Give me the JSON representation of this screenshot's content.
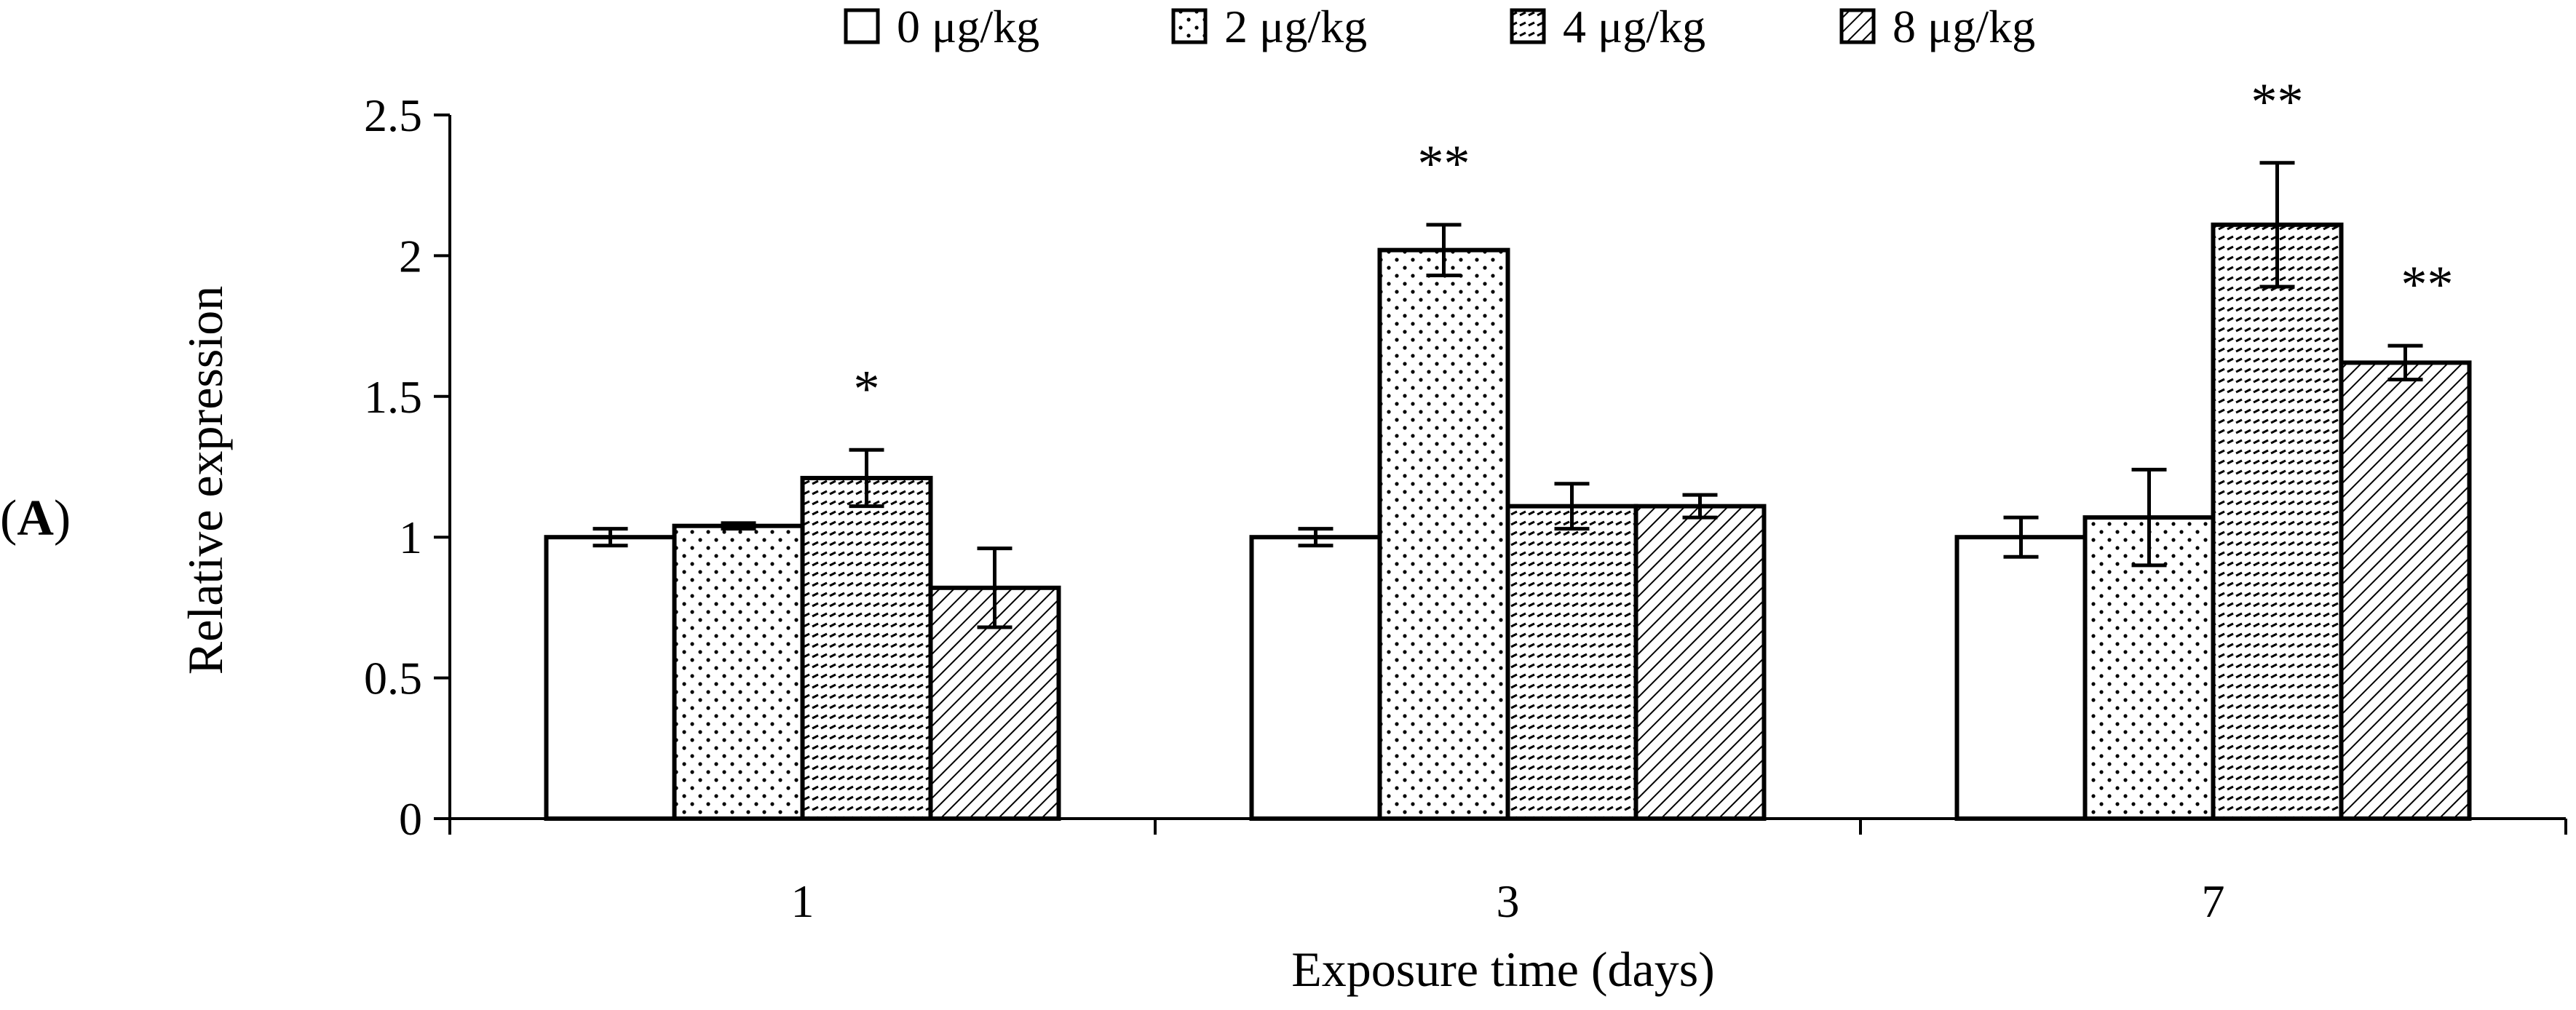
{
  "panel_label": {
    "open": "(",
    "letter": "A",
    "close": ")"
  },
  "chart_data": {
    "type": "bar",
    "title": "",
    "xlabel": "Exposure time (days)",
    "ylabel": "Relative expression",
    "categories": [
      "1",
      "3",
      "7"
    ],
    "ylim": [
      0,
      2.5
    ],
    "yticks": [
      "0",
      "0.5",
      "1",
      "1.5",
      "2",
      "2.5"
    ],
    "grid": false,
    "legend_position": "top",
    "series": [
      {
        "name": "0 μg/kg",
        "pattern": "none",
        "values": [
          1.0,
          1.0,
          1.0
        ],
        "errors": [
          0.03,
          0.03,
          0.07
        ],
        "annotations": [
          "",
          "",
          ""
        ]
      },
      {
        "name": "2 μg/kg",
        "pattern": "dots",
        "values": [
          1.04,
          2.02,
          1.07
        ],
        "errors": [
          0.01,
          0.09,
          0.17
        ],
        "annotations": [
          "",
          "**",
          ""
        ]
      },
      {
        "name": "4 μg/kg",
        "pattern": "horizontal-dashes",
        "values": [
          1.21,
          1.11,
          2.11
        ],
        "errors": [
          0.1,
          0.08,
          0.22
        ],
        "annotations": [
          "*",
          "",
          "**"
        ]
      },
      {
        "name": "8 μg/kg",
        "pattern": "diagonal",
        "values": [
          0.82,
          1.11,
          1.62
        ],
        "errors": [
          0.14,
          0.04,
          0.06
        ],
        "annotations": [
          "",
          "",
          "**"
        ]
      }
    ],
    "colors": {
      "bar_fill": "#ffffff",
      "stroke": "#000000"
    }
  }
}
